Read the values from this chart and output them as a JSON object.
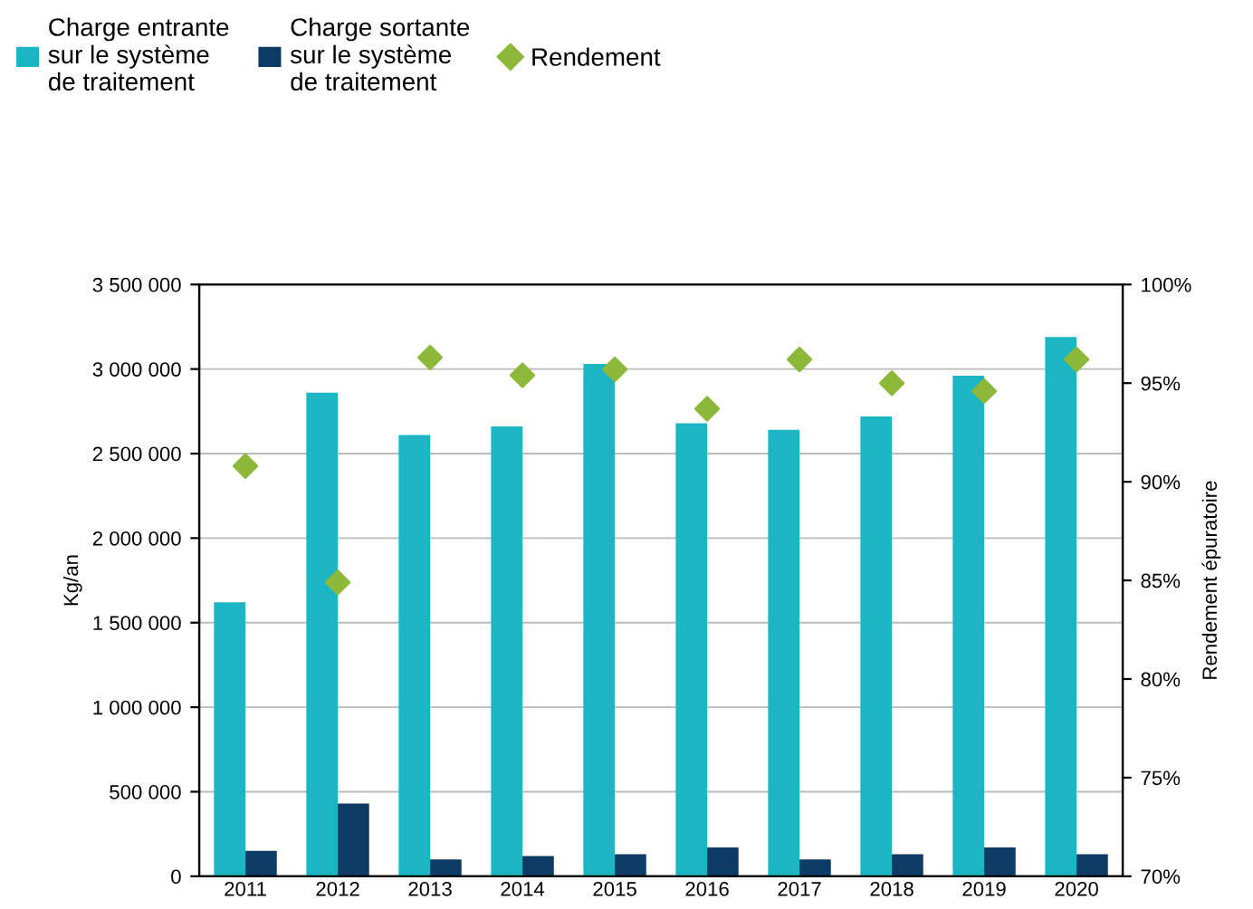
{
  "chart_data": {
    "type": "bar",
    "ylabel": "Kg/an",
    "y2label": "Rendement épuratoire",
    "categories": [
      "2011",
      "2012",
      "2013",
      "2014",
      "2015",
      "2016",
      "2017",
      "2018",
      "2019",
      "2020"
    ],
    "series": [
      {
        "name": "Charge entrante\nsur le système\nde traitement",
        "color": "#1bb5c4",
        "values": [
          1620000,
          2860000,
          2610000,
          2660000,
          3030000,
          2680000,
          2640000,
          2720000,
          2960000,
          3190000
        ]
      },
      {
        "name": "Charge sortante\nsur le système\nde traitement",
        "color": "#0d3b66",
        "values": [
          150000,
          430000,
          100000,
          120000,
          130000,
          170000,
          100000,
          130000,
          170000,
          130000
        ]
      },
      {
        "name": "Rendement",
        "color": "#8db83a",
        "type": "scatter",
        "axis": "y2",
        "marker": "diamond",
        "values": [
          90.8,
          84.9,
          96.3,
          95.4,
          95.7,
          93.7,
          96.2,
          95.0,
          94.6,
          96.2
        ]
      }
    ],
    "ylim": [
      0,
      3500000
    ],
    "yticks": [
      0,
      {
        "value": 500000,
        "label": "500 000"
      },
      {
        "value": 1000000,
        "label": "1 000 000"
      },
      {
        "value": 1500000,
        "label": "1 500 000"
      },
      {
        "value": 2000000,
        "label": "2 000 000"
      },
      {
        "value": 2500000,
        "label": "2 500 000"
      },
      {
        "value": 3000000,
        "label": "3 000 000"
      },
      {
        "value": 3500000,
        "label": "3 500 000"
      }
    ],
    "y2lim": [
      70,
      100
    ],
    "y2ticks": [
      {
        "value": 70,
        "label": "70%"
      },
      {
        "value": 75,
        "label": "75%"
      },
      {
        "value": 80,
        "label": "80%"
      },
      {
        "value": 85,
        "label": "85%"
      },
      {
        "value": 90,
        "label": "90%"
      },
      {
        "value": 95,
        "label": "95%"
      },
      {
        "value": 100,
        "label": "100%"
      }
    ],
    "grid": "y",
    "legend": "top left"
  }
}
